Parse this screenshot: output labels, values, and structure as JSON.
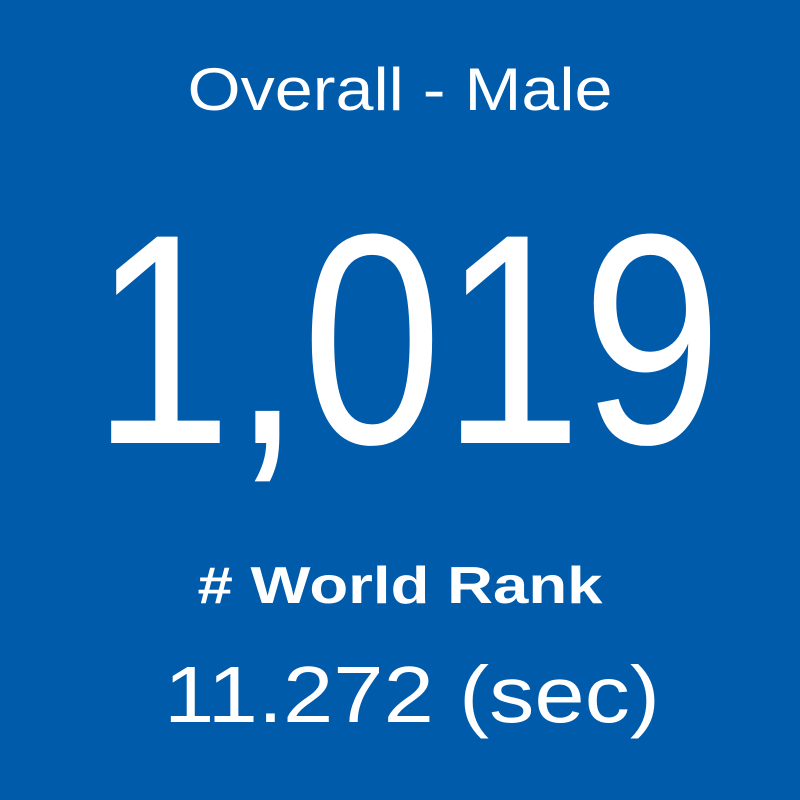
{
  "tile": {
    "title": "Overall - Male",
    "value": "1,019",
    "label": "# World Rank",
    "detail": "11.272 (sec)"
  }
}
